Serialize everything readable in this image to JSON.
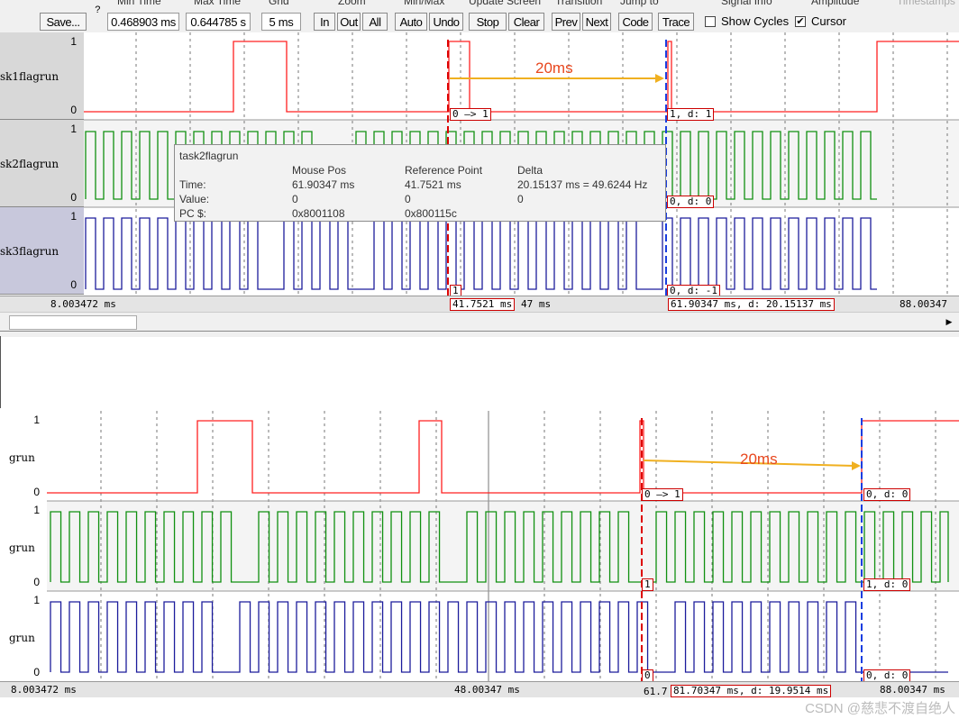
{
  "toolbar": {
    "headers": {
      "min_time": "Min Time",
      "max_time": "Max Time",
      "grid": "Grid",
      "zoom": "Zoom",
      "min_max": "Min/Max",
      "update_screen": "Update Screen",
      "transition": "Transition",
      "jump_to": "Jump to",
      "signal_info": "Signal Info",
      "amplitude": "Amplitude",
      "timestamps": "Timestamps"
    },
    "save_label": "Save...",
    "help_label": "?",
    "min_time_value": "0.468903 ms",
    "max_time_value": "0.644785 s",
    "grid_value": "5 ms",
    "zoom": {
      "in": "In",
      "out": "Out",
      "all": "All"
    },
    "min_max": {
      "auto": "Auto",
      "undo": "Undo"
    },
    "update": {
      "stop": "Stop",
      "clear": "Clear"
    },
    "transition": {
      "prev": "Prev",
      "next": "Next"
    },
    "jump": {
      "code": "Code",
      "trace": "Trace"
    },
    "show_cycles": {
      "label": "Show Cycles",
      "checked": false
    },
    "cursor": {
      "label": "Cursor",
      "checked": true
    }
  },
  "panel1": {
    "signals": [
      {
        "name": "sk1flagrun",
        "hi": "1",
        "lo": "0",
        "color": "#ff2020"
      },
      {
        "name": "sk2flagrun",
        "hi": "1",
        "lo": "0",
        "color": "#109010"
      },
      {
        "name": "sk3flagrun",
        "hi": "1",
        "lo": "0",
        "color": "#1c1c9c"
      }
    ],
    "annotation": "20ms",
    "markers": {
      "m1": "0 —> 1",
      "m2": "1,  d: 1",
      "m3": "0,  d: 0",
      "m4": "1",
      "m5": "0,  d: -1",
      "ref_time": "41.7521 ms",
      "ref_suffix": "47 ms",
      "cursor_time": "61.90347 ms,  d: 20.15137 ms"
    },
    "axis": {
      "left": "8.003472 ms",
      "right": "88.00347"
    },
    "tooltip": {
      "title": "task2flagrun",
      "col_mouse": "Mouse Pos",
      "col_ref": "Reference Point",
      "col_delta": "Delta",
      "row_time": "Time:",
      "row_value": "Value:",
      "row_pc": "PC $:",
      "time_mouse": "61.90347 ms",
      "time_ref": "41.7521 ms",
      "time_delta": "20.15137 ms = 49.6244 Hz",
      "value_mouse": "0",
      "value_ref": "0",
      "value_delta": "0",
      "pc_mouse": "0x8001108",
      "pc_ref": "0x800115c"
    }
  },
  "panel2": {
    "signals": [
      {
        "name": "grun",
        "hi": "1",
        "lo": "0",
        "color": "#ff2020"
      },
      {
        "name": "grun",
        "hi": "1",
        "lo": "0",
        "color": "#109010"
      },
      {
        "name": "grun",
        "hi": "1",
        "lo": "0",
        "color": "#1c1c9c"
      }
    ],
    "annotation": "20ms",
    "markers": {
      "m1": "0 —> 1",
      "m2": "0,  d: 0",
      "m3": "1",
      "m4": "1,  d: 0",
      "m5": "0",
      "m6": "0,  d: 0",
      "cursor_prefix": "61.7",
      "cursor_time": "81.70347 ms,  d: 19.9514 ms"
    },
    "axis": {
      "left": "8.003472 ms",
      "mid": "48.00347 ms",
      "right": "88.00347 ms"
    }
  },
  "watermark": "CSDN @慈悲不渡自绝人"
}
